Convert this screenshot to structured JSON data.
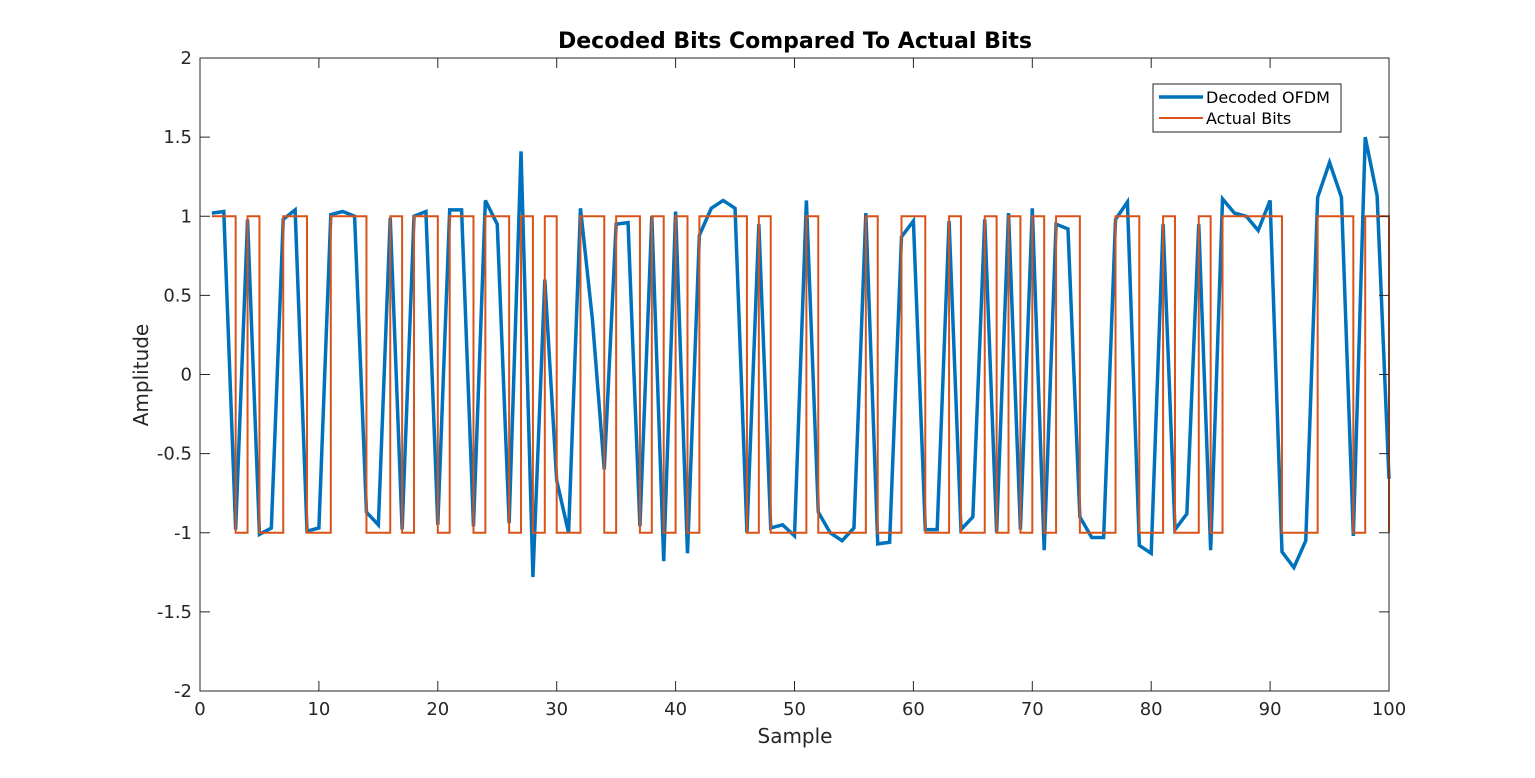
{
  "chart_data": {
    "type": "line",
    "title": "Decoded Bits Compared To Actual Bits",
    "xlabel": "Sample",
    "ylabel": "Amplitude",
    "xlim": [
      0,
      100
    ],
    "ylim": [
      -2,
      2
    ],
    "xticks": [
      "0",
      "10",
      "20",
      "30",
      "40",
      "50",
      "60",
      "70",
      "80",
      "90",
      "100"
    ],
    "yticks": [
      "-2",
      "-1.5",
      "-1",
      "-0.5",
      "0",
      "0.5",
      "1",
      "1.5",
      "2"
    ],
    "grid": false,
    "legend_position": "top-right",
    "series": [
      {
        "name": "Decoded OFDM",
        "color": "#0072BD",
        "style": "line",
        "x": [
          1,
          2,
          3,
          4,
          5,
          6,
          7,
          8,
          9,
          10,
          11,
          12,
          13,
          14,
          15,
          16,
          17,
          18,
          19,
          20,
          21,
          22,
          23,
          24,
          25,
          26,
          27,
          28,
          29,
          30,
          31,
          32,
          33,
          34,
          35,
          36,
          37,
          38,
          39,
          40,
          41,
          42,
          43,
          44,
          45,
          46,
          47,
          48,
          49,
          50,
          51,
          52,
          53,
          54,
          55,
          56,
          57,
          58,
          59,
          60,
          61,
          62,
          63,
          64,
          65,
          66,
          67,
          68,
          69,
          70,
          71,
          72,
          73,
          74,
          75,
          76,
          77,
          78,
          79,
          80,
          81,
          82,
          83,
          84,
          85,
          86,
          87,
          88,
          89,
          90,
          91,
          92,
          93,
          94,
          95,
          96,
          97,
          98,
          99,
          100
        ],
        "values": [
          1.02,
          1.03,
          -0.98,
          0.98,
          -1.01,
          -0.97,
          0.98,
          1.04,
          -0.99,
          -0.97,
          1.01,
          1.03,
          1.0,
          -0.87,
          -0.95,
          0.99,
          -0.98,
          1.0,
          1.03,
          -0.95,
          1.04,
          1.04,
          -0.96,
          1.1,
          0.95,
          -0.94,
          1.41,
          -1.28,
          0.6,
          -0.67,
          -1.0,
          1.05,
          0.35,
          -0.6,
          0.95,
          0.96,
          -0.96,
          1.0,
          -1.18,
          1.03,
          -1.13,
          0.88,
          1.05,
          1.1,
          1.05,
          -1.0,
          0.95,
          -0.97,
          -0.95,
          -1.02,
          1.1,
          -0.87,
          -1.0,
          -1.05,
          -0.97,
          1.02,
          -1.07,
          -1.06,
          0.87,
          0.97,
          -0.98,
          -0.98,
          0.97,
          -0.98,
          -0.9,
          0.98,
          -1.0,
          1.02,
          -0.98,
          1.05,
          -1.11,
          0.95,
          0.92,
          -0.9,
          -1.03,
          -1.03,
          0.98,
          1.09,
          -1.08,
          -1.13,
          0.95,
          -0.98,
          -0.88,
          0.95,
          -1.11,
          1.11,
          1.02,
          1.0,
          0.91,
          1.1,
          -1.12,
          -1.22,
          -1.05,
          1.12,
          1.34,
          1.12,
          -1.02,
          1.5,
          1.13,
          -0.66
        ]
      },
      {
        "name": "Actual Bits",
        "color": "#D95319",
        "style": "stairs",
        "x": [
          1,
          2,
          3,
          4,
          5,
          6,
          7,
          8,
          9,
          10,
          11,
          12,
          13,
          14,
          15,
          16,
          17,
          18,
          19,
          20,
          21,
          22,
          23,
          24,
          25,
          26,
          27,
          28,
          29,
          30,
          31,
          32,
          33,
          34,
          35,
          36,
          37,
          38,
          39,
          40,
          41,
          42,
          43,
          44,
          45,
          46,
          47,
          48,
          49,
          50,
          51,
          52,
          53,
          54,
          55,
          56,
          57,
          58,
          59,
          60,
          61,
          62,
          63,
          64,
          65,
          66,
          67,
          68,
          69,
          70,
          71,
          72,
          73,
          74,
          75,
          76,
          77,
          78,
          79,
          80,
          81,
          82,
          83,
          84,
          85,
          86,
          87,
          88,
          89,
          90,
          91,
          92,
          93,
          94,
          95,
          96,
          97,
          98,
          99,
          100
        ],
        "values": [
          1,
          1,
          -1,
          1,
          -1,
          -1,
          1,
          1,
          -1,
          -1,
          1,
          1,
          1,
          -1,
          -1,
          1,
          -1,
          1,
          1,
          -1,
          1,
          1,
          -1,
          1,
          1,
          -1,
          1,
          -1,
          1,
          -1,
          -1,
          1,
          1,
          -1,
          1,
          1,
          -1,
          1,
          -1,
          1,
          -1,
          1,
          1,
          1,
          1,
          -1,
          1,
          -1,
          -1,
          -1,
          1,
          -1,
          -1,
          -1,
          -1,
          1,
          -1,
          -1,
          1,
          1,
          -1,
          -1,
          1,
          -1,
          -1,
          1,
          -1,
          1,
          -1,
          1,
          -1,
          1,
          1,
          -1,
          -1,
          -1,
          1,
          1,
          -1,
          -1,
          1,
          -1,
          -1,
          1,
          -1,
          1,
          1,
          1,
          1,
          1,
          -1,
          -1,
          -1,
          1,
          1,
          1,
          -1,
          1,
          1,
          -1
        ]
      }
    ]
  }
}
